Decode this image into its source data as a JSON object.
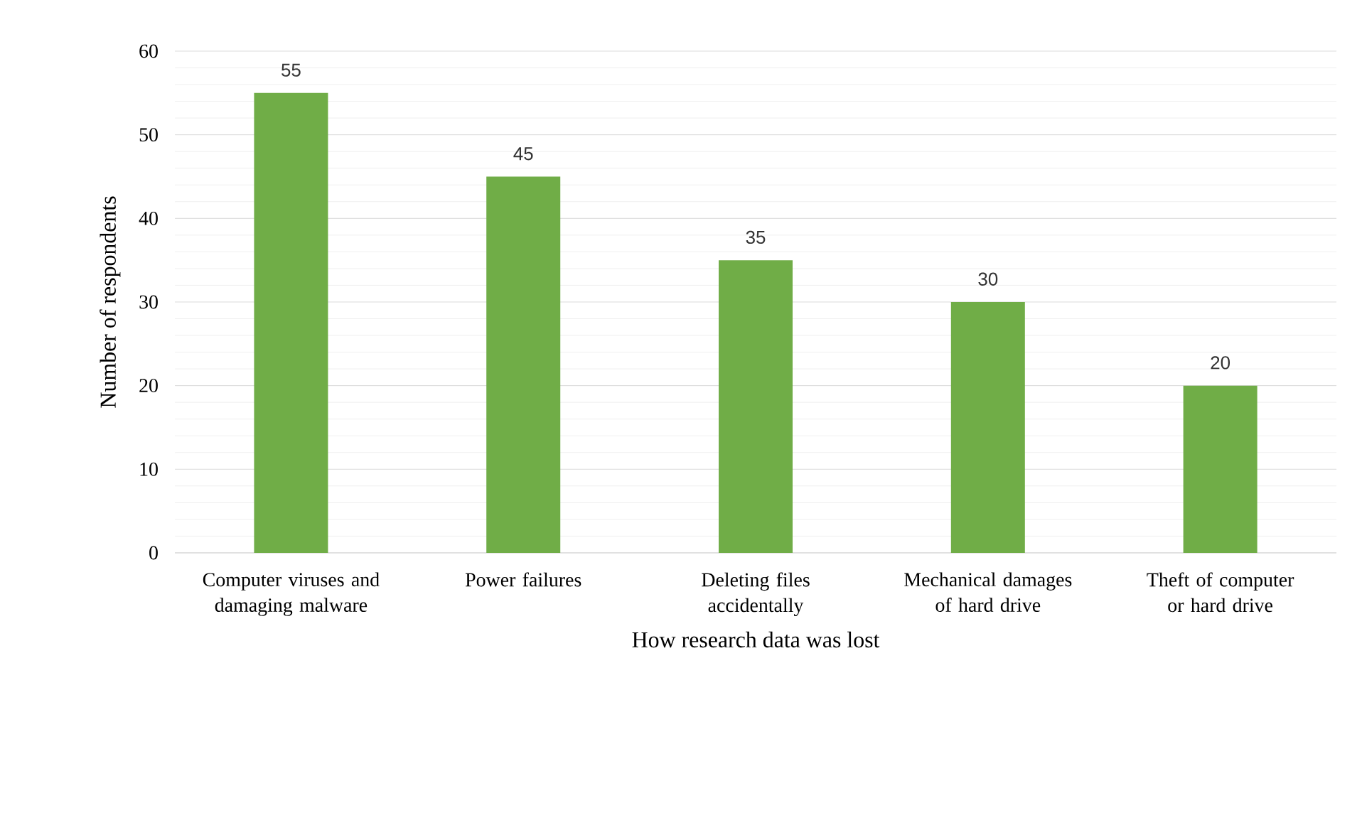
{
  "chart_data": {
    "type": "bar",
    "xlabel": "How  research data was lost",
    "ylabel": "Number of respondents",
    "categories": [
      "Computer viruses and damaging malware",
      "Power failures",
      "Deleting files accidentally",
      "Mechanical damages of hard drive",
      "Theft of computer or hard drive"
    ],
    "values": [
      55,
      45,
      35,
      30,
      20
    ],
    "color": "#70ad47",
    "ylim": [
      0,
      60
    ],
    "yticks": [
      0,
      10,
      20,
      30,
      40,
      50,
      60
    ],
    "grid": "y",
    "data_labels": true
  }
}
